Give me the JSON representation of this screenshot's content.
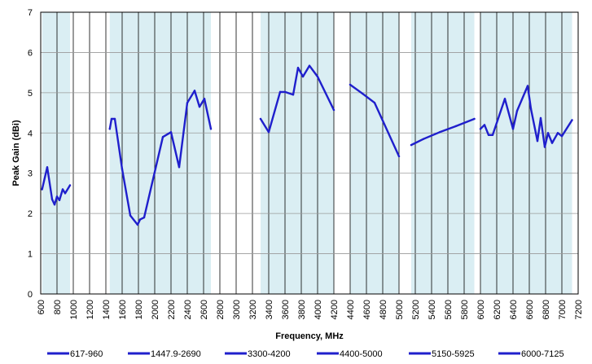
{
  "chart_data": {
    "type": "line",
    "title": "",
    "xlabel": "Frequency, MHz",
    "ylabel": "Peak Gain (dBi)",
    "xlim": [
      600,
      7200
    ],
    "ylim": [
      0,
      7
    ],
    "x_ticks": [
      600,
      800,
      1000,
      1200,
      1400,
      1600,
      1800,
      2000,
      2200,
      2400,
      2600,
      2800,
      3000,
      3200,
      3400,
      3600,
      3800,
      4000,
      4200,
      4400,
      4600,
      4800,
      5000,
      5200,
      5400,
      5600,
      5800,
      6000,
      6200,
      6400,
      6600,
      6800,
      7000,
      7200
    ],
    "y_ticks": [
      0,
      1,
      2,
      3,
      4,
      5,
      6,
      7
    ],
    "grid": true,
    "legend_position": "bottom",
    "band_fill_color": "#daeef3",
    "series_color": "#1f1fcc",
    "bands": [
      [
        617,
        960
      ],
      [
        1447.9,
        2690
      ],
      [
        3300,
        4200
      ],
      [
        4400,
        5000
      ],
      [
        5150,
        5925
      ],
      [
        6000,
        7125
      ]
    ],
    "series": [
      {
        "name": "617-960",
        "points": [
          [
            617,
            2.6
          ],
          [
            680,
            3.15
          ],
          [
            740,
            2.35
          ],
          [
            770,
            2.22
          ],
          [
            800,
            2.42
          ],
          [
            830,
            2.33
          ],
          [
            870,
            2.6
          ],
          [
            900,
            2.5
          ],
          [
            960,
            2.7
          ]
        ]
      },
      {
        "name": "1447.9-2690",
        "points": [
          [
            1448,
            4.1
          ],
          [
            1470,
            4.35
          ],
          [
            1510,
            4.35
          ],
          [
            1600,
            3.1
          ],
          [
            1700,
            1.95
          ],
          [
            1790,
            1.72
          ],
          [
            1820,
            1.85
          ],
          [
            1870,
            1.9
          ],
          [
            2100,
            3.9
          ],
          [
            2200,
            4.02
          ],
          [
            2300,
            3.15
          ],
          [
            2400,
            4.75
          ],
          [
            2490,
            5.05
          ],
          [
            2550,
            4.65
          ],
          [
            2610,
            4.85
          ],
          [
            2690,
            4.1
          ]
        ]
      },
      {
        "name": "3300-4200",
        "points": [
          [
            3300,
            4.35
          ],
          [
            3400,
            4.02
          ],
          [
            3540,
            5.02
          ],
          [
            3600,
            5.02
          ],
          [
            3700,
            4.95
          ],
          [
            3760,
            5.62
          ],
          [
            3820,
            5.4
          ],
          [
            3900,
            5.67
          ],
          [
            4000,
            5.4
          ],
          [
            4200,
            4.57
          ]
        ]
      },
      {
        "name": "4400-5000",
        "points": [
          [
            4400,
            5.2
          ],
          [
            4550,
            4.98
          ],
          [
            4700,
            4.75
          ],
          [
            5000,
            3.42
          ]
        ]
      },
      {
        "name": "5150-5925",
        "points": [
          [
            5150,
            3.7
          ],
          [
            5300,
            3.85
          ],
          [
            5500,
            4.02
          ],
          [
            5700,
            4.17
          ],
          [
            5925,
            4.35
          ]
        ]
      },
      {
        "name": "6000-7125",
        "points": [
          [
            6000,
            4.1
          ],
          [
            6050,
            4.2
          ],
          [
            6100,
            3.95
          ],
          [
            6150,
            3.95
          ],
          [
            6300,
            4.85
          ],
          [
            6400,
            4.1
          ],
          [
            6450,
            4.55
          ],
          [
            6580,
            5.17
          ],
          [
            6620,
            4.6
          ],
          [
            6700,
            3.8
          ],
          [
            6740,
            4.37
          ],
          [
            6790,
            3.65
          ],
          [
            6830,
            4.0
          ],
          [
            6880,
            3.75
          ],
          [
            6950,
            4.0
          ],
          [
            7000,
            3.92
          ],
          [
            7125,
            4.32
          ]
        ]
      }
    ]
  }
}
